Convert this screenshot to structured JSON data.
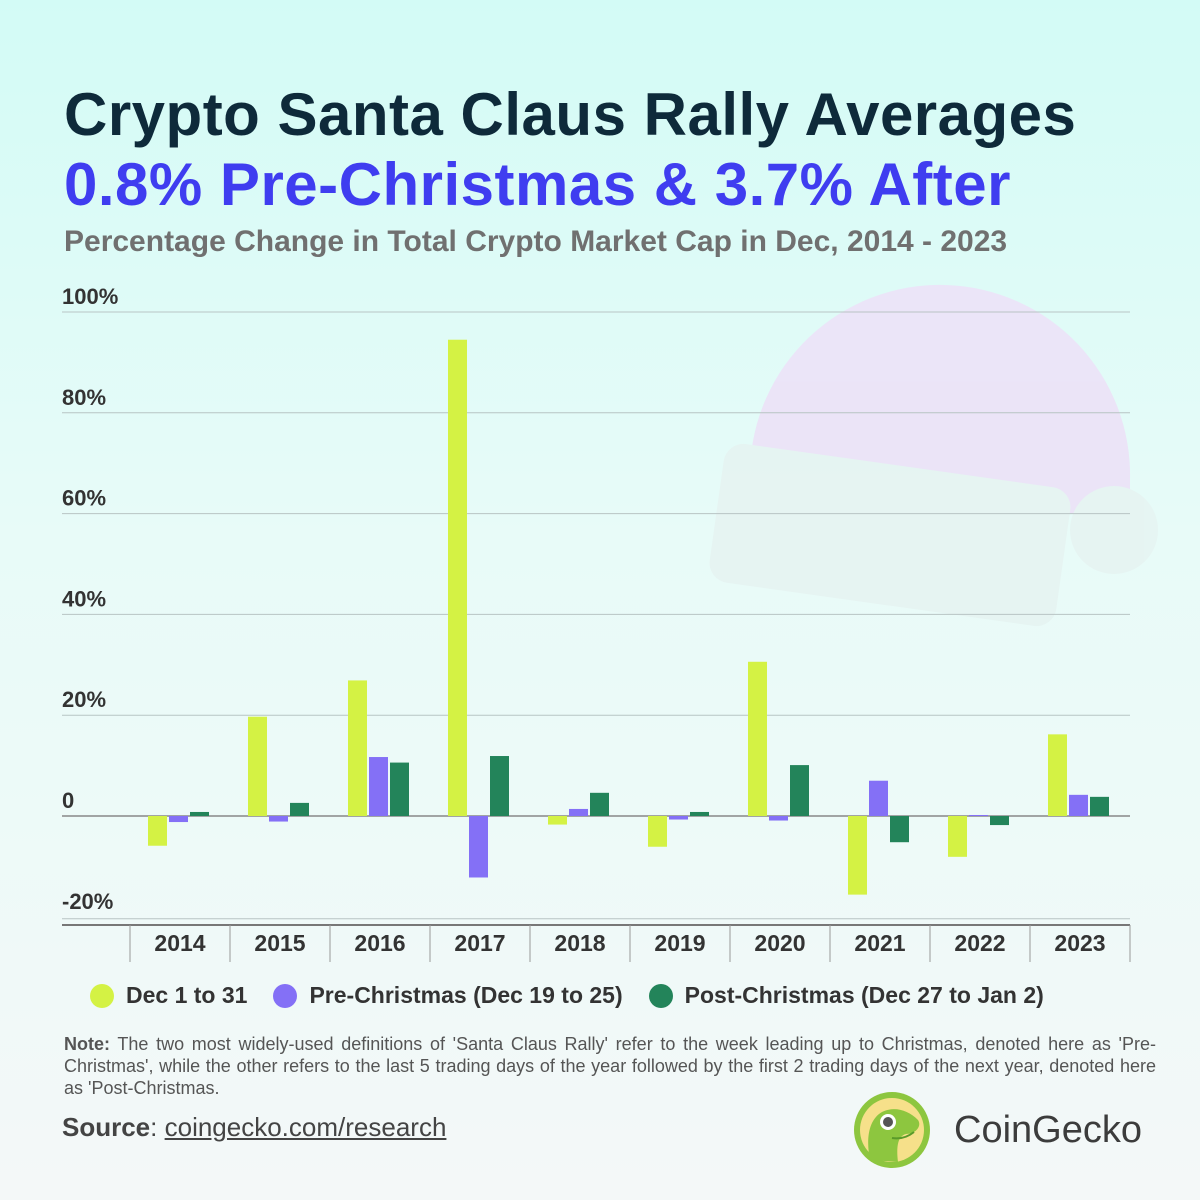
{
  "title": "Crypto Santa Claus Rally Averages",
  "subtitle": "0.8% Pre-Christmas & 3.7% After",
  "description": "Percentage Change in Total Crypto Market Cap in Dec, 2014 - 2023",
  "chart_data": {
    "type": "bar",
    "categories": [
      "2014",
      "2015",
      "2016",
      "2017",
      "2018",
      "2019",
      "2020",
      "2021",
      "2022",
      "2023"
    ],
    "series": [
      {
        "name": "Dec 1 to 31",
        "color": "#d4f244",
        "values": [
          -5.9,
          19.7,
          26.9,
          94.5,
          -1.7,
          -6.1,
          30.6,
          -15.6,
          -8.1,
          16.2
        ]
      },
      {
        "name": "Pre-Christmas (Dec 19 to 25)",
        "color": "#8470f6",
        "values": [
          -1.2,
          -1.1,
          11.7,
          -12.2,
          1.4,
          -0.7,
          -0.9,
          7.0,
          0.2,
          4.2
        ]
      },
      {
        "name": "Post-Christmas (Dec 27 to Jan 2)",
        "color": "#23845a",
        "values": [
          0.8,
          2.6,
          10.6,
          11.9,
          4.6,
          0.8,
          10.1,
          -5.2,
          -1.8,
          3.8
        ]
      }
    ],
    "yticks": [
      "100%",
      "80%",
      "60%",
      "40%",
      "20%",
      "0",
      "-20%"
    ],
    "ytick_values": [
      100,
      80,
      60,
      40,
      20,
      0,
      -20
    ],
    "ylim": [
      -20,
      100
    ],
    "grid": true,
    "legend": "bottom"
  },
  "note_label": "Note:",
  "note": "The two most widely-used definitions of 'Santa Claus Rally' refer to the week leading up to Christmas, denoted here as 'Pre-Christmas', while the other refers to the last 5 trading days of the year followed by the first 2 trading days of the next year, denoted here as 'Post-Christmas.",
  "source_label": "Source",
  "source_link": "coingecko.com/research",
  "brand": "CoinGecko"
}
